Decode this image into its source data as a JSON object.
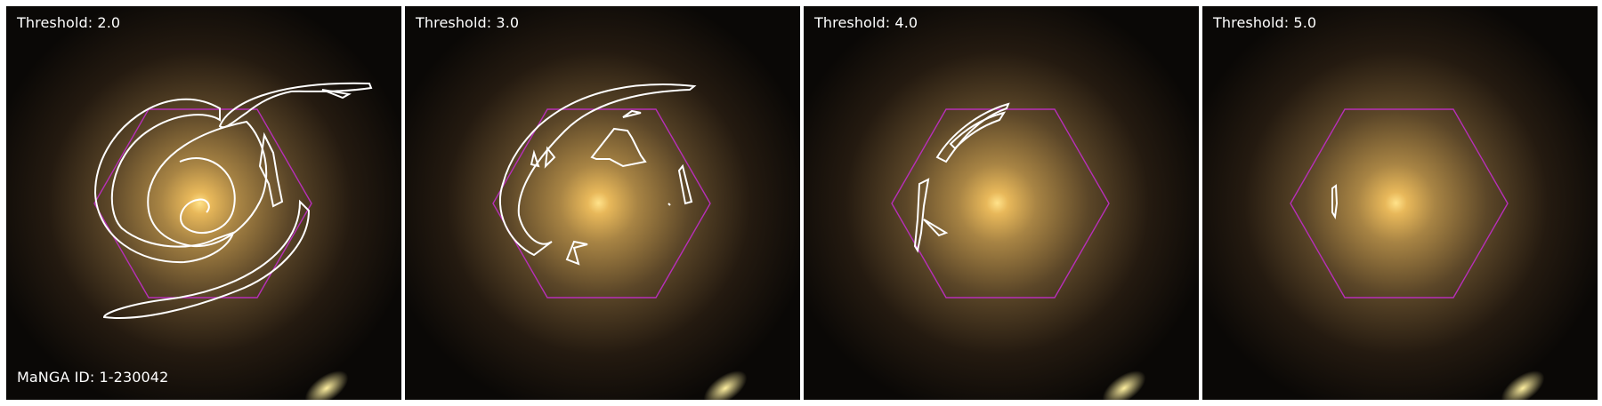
{
  "figure": {
    "manga_id_label": "MaNGA ID: 1-230042",
    "panels": [
      {
        "threshold_label": "Threshold: 2.0"
      },
      {
        "threshold_label": "Threshold: 3.0"
      },
      {
        "threshold_label": "Threshold: 4.0"
      },
      {
        "threshold_label": "Threshold: 5.0"
      }
    ]
  },
  "colors": {
    "hexagon": "#b72fb8",
    "contour": "#ffffff",
    "galaxy_core": "#ffd977",
    "galaxy_halo": "#8a6a3a",
    "background": "#0a0806"
  },
  "icons": {
    "galaxy": "spiral-galaxy-image",
    "hexagon": "ifu-hexagon-footprint",
    "contours": "threshold-contours"
  }
}
